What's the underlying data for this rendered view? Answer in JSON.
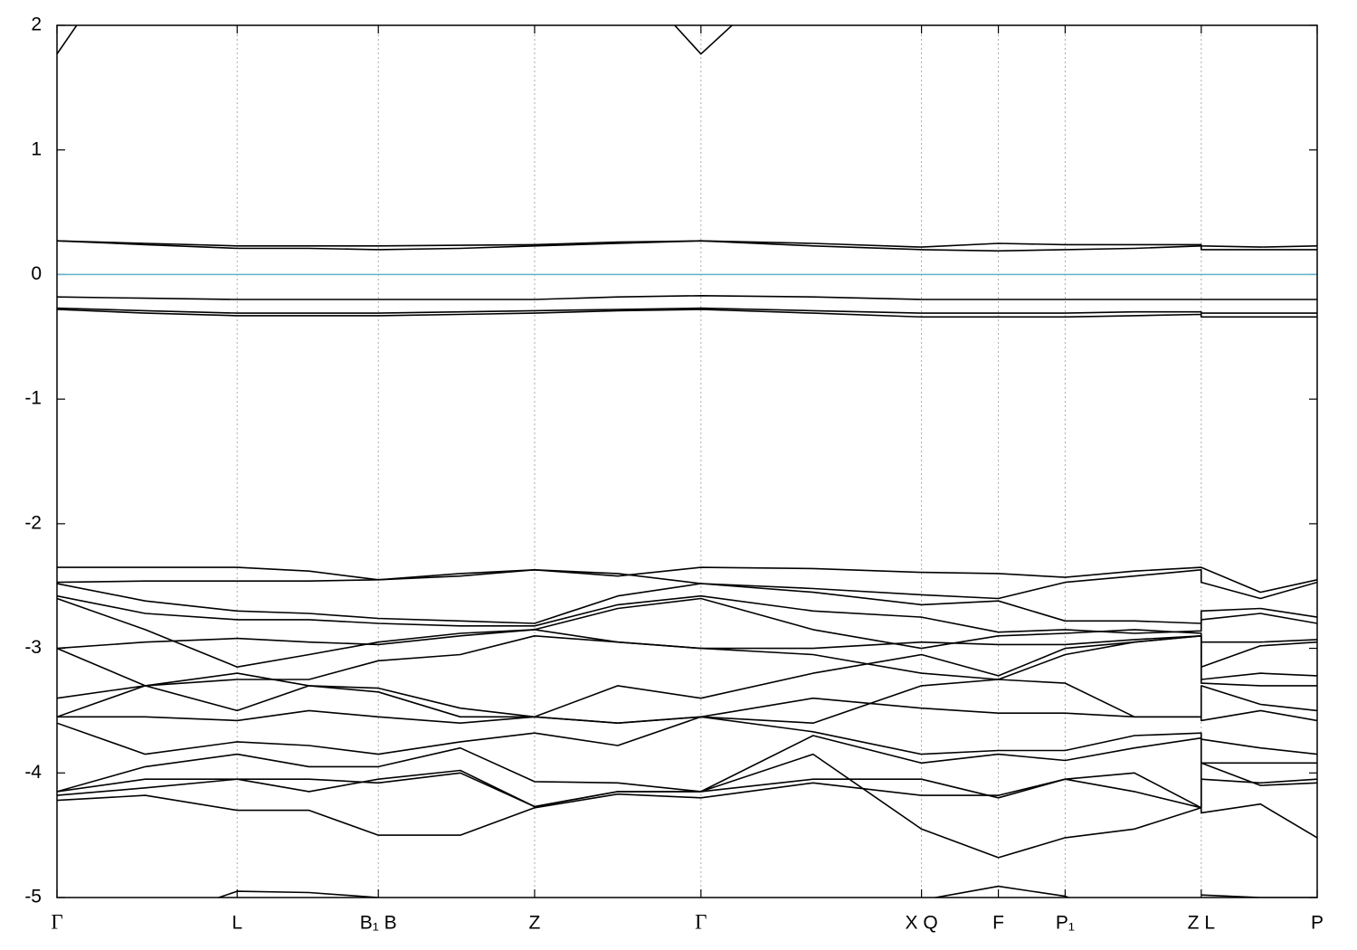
{
  "chart_data": {
    "type": "line",
    "x": [
      0,
      0.07,
      0.143,
      0.2,
      0.255,
      0.32,
      0.379,
      0.445,
      0.511,
      0.6,
      0.686,
      0.747,
      0.8,
      0.855,
      0.908,
      0.908,
      0.955,
      1.0
    ],
    "xlim": [
      0,
      1
    ],
    "xticks": [
      {
        "value": 0,
        "label": "Γ"
      },
      {
        "value": 0.143,
        "label": "L"
      },
      {
        "value": 0.255,
        "label": "B₁ B"
      },
      {
        "value": 0.379,
        "label": "Z"
      },
      {
        "value": 0.511,
        "label": "Γ"
      },
      {
        "value": 0.686,
        "label": "X Q"
      },
      {
        "value": 0.747,
        "label": "F"
      },
      {
        "value": 0.8,
        "label": "P₁"
      },
      {
        "value": 0.908,
        "label": "Z L"
      },
      {
        "value": 1.0,
        "label": "P"
      }
    ],
    "ylim": [
      -5,
      2
    ],
    "yticks": [
      -5,
      -4,
      -3,
      -2,
      -1,
      0,
      1,
      2
    ],
    "grid": "x",
    "fermi_level": 0,
    "fermi_color": "#5fb3c9",
    "series": [
      {
        "color": "#000000",
        "values": [
          1.77,
          2.8,
          null,
          null,
          null,
          null,
          null,
          2.5,
          1.77,
          2.6,
          null,
          null,
          null,
          null,
          null,
          null,
          null,
          null
        ]
      },
      {
        "color": "#000000",
        "values": [
          0.27,
          0.25,
          0.23,
          0.23,
          0.23,
          0.235,
          0.24,
          0.26,
          0.27,
          0.25,
          0.22,
          0.25,
          0.24,
          0.24,
          0.24,
          0.23,
          0.22,
          0.23
        ]
      },
      {
        "color": "#000000",
        "values": [
          0.27,
          0.24,
          0.21,
          0.21,
          0.2,
          0.21,
          0.23,
          0.25,
          0.27,
          0.23,
          0.2,
          0.19,
          0.2,
          0.21,
          0.23,
          0.2,
          0.2,
          0.2
        ]
      },
      {
        "color": "#000000",
        "values": [
          -0.18,
          -0.19,
          -0.2,
          -0.2,
          -0.2,
          -0.2,
          -0.2,
          -0.18,
          -0.17,
          -0.18,
          -0.2,
          -0.2,
          -0.2,
          -0.2,
          -0.2,
          -0.2,
          -0.2,
          -0.2
        ]
      },
      {
        "color": "#000000",
        "values": [
          -0.27,
          -0.29,
          -0.31,
          -0.31,
          -0.31,
          -0.3,
          -0.29,
          -0.28,
          -0.27,
          -0.29,
          -0.31,
          -0.31,
          -0.31,
          -0.3,
          -0.3,
          -0.31,
          -0.31,
          -0.31
        ]
      },
      {
        "color": "#000000",
        "values": [
          -0.28,
          -0.31,
          -0.33,
          -0.33,
          -0.33,
          -0.32,
          -0.31,
          -0.29,
          -0.28,
          -0.31,
          -0.34,
          -0.34,
          -0.34,
          -0.33,
          -0.32,
          -0.34,
          -0.34,
          -0.34
        ]
      },
      {
        "color": "#000000",
        "values": [
          -2.35,
          -2.35,
          -2.35,
          -2.38,
          -2.45,
          -2.42,
          -2.37,
          -2.42,
          -2.35,
          -2.36,
          -2.39,
          -2.4,
          -2.43,
          -2.38,
          -2.35,
          -2.35,
          -2.55,
          -2.45
        ]
      },
      {
        "color": "#000000",
        "values": [
          -2.47,
          -2.46,
          -2.46,
          -2.46,
          -2.45,
          -2.4,
          -2.37,
          -2.4,
          -2.48,
          -2.52,
          -2.57,
          -2.6,
          -2.47,
          -2.42,
          -2.37,
          -2.47,
          -2.6,
          -2.47
        ]
      },
      {
        "color": "#000000",
        "values": [
          -2.48,
          -2.62,
          -2.7,
          -2.72,
          -2.76,
          -2.78,
          -2.8,
          -2.58,
          -2.48,
          -2.55,
          -2.65,
          -2.62,
          -2.78,
          -2.78,
          -2.8,
          -2.7,
          -2.68,
          -2.75
        ]
      },
      {
        "color": "#000000",
        "values": [
          -2.58,
          -2.72,
          -2.77,
          -2.77,
          -2.8,
          -2.82,
          -2.82,
          -2.65,
          -2.58,
          -2.7,
          -2.75,
          -2.87,
          -2.85,
          -2.88,
          -2.86,
          -2.77,
          -2.72,
          -2.8
        ]
      },
      {
        "color": "#000000",
        "values": [
          -2.6,
          -2.85,
          -3.15,
          -3.05,
          -2.95,
          -2.88,
          -2.85,
          -2.68,
          -2.6,
          -2.85,
          -3.0,
          -2.9,
          -2.88,
          -2.85,
          -2.88,
          -2.95,
          -2.95,
          -2.93
        ]
      },
      {
        "color": "#000000",
        "values": [
          -3.0,
          -2.95,
          -2.92,
          -2.95,
          -2.97,
          -2.9,
          -2.85,
          -2.95,
          -3.0,
          -3.0,
          -2.95,
          -2.97,
          -2.97,
          -2.93,
          -2.9,
          -3.15,
          -2.98,
          -2.95
        ]
      },
      {
        "color": "#000000",
        "values": [
          -3.0,
          -3.3,
          -3.5,
          -3.3,
          -3.35,
          -3.55,
          -3.55,
          -3.3,
          -3.4,
          -3.2,
          -3.05,
          -3.22,
          -3.0,
          -2.95,
          -2.9,
          -3.25,
          -3.2,
          -3.22
        ]
      },
      {
        "color": "#000000",
        "values": [
          -3.4,
          -3.3,
          -3.25,
          -3.25,
          -3.1,
          -3.05,
          -2.9,
          -2.95,
          -3.0,
          -3.05,
          -3.2,
          -3.25,
          -3.05,
          -2.95,
          -2.9,
          -3.28,
          -3.3,
          -3.3
        ]
      },
      {
        "color": "#000000",
        "values": [
          -3.55,
          -3.3,
          -3.2,
          -3.3,
          -3.32,
          -3.48,
          -3.55,
          -3.6,
          -3.55,
          -3.6,
          -3.3,
          -3.25,
          -3.28,
          -3.55,
          -3.55,
          -3.3,
          -3.45,
          -3.5
        ]
      },
      {
        "color": "#000000",
        "values": [
          -3.55,
          -3.55,
          -3.58,
          -3.5,
          -3.55,
          -3.6,
          -3.55,
          -3.6,
          -3.55,
          -3.4,
          -3.48,
          -3.52,
          -3.52,
          -3.55,
          -3.55,
          -3.58,
          -3.5,
          -3.58
        ]
      },
      {
        "color": "#000000",
        "values": [
          -3.6,
          -3.85,
          -3.75,
          -3.78,
          -3.85,
          -3.75,
          -3.68,
          -3.78,
          -3.55,
          -3.67,
          -3.85,
          -3.82,
          -3.82,
          -3.7,
          -3.68,
          -3.73,
          -3.8,
          -3.85
        ]
      },
      {
        "color": "#000000",
        "values": [
          -4.15,
          -3.95,
          -3.85,
          -3.95,
          -3.95,
          -3.8,
          -4.07,
          -4.08,
          -4.15,
          -3.7,
          -3.92,
          -3.85,
          -3.9,
          -3.8,
          -3.72,
          -3.92,
          -3.92,
          -3.92
        ]
      },
      {
        "color": "#000000",
        "values": [
          -4.15,
          -4.05,
          -4.05,
          -4.15,
          -4.05,
          -3.98,
          -4.27,
          -4.15,
          -4.15,
          -4.05,
          -4.05,
          -4.2,
          -4.05,
          -4.0,
          -4.28,
          -3.92,
          -4.1,
          -4.08
        ]
      },
      {
        "color": "#000000",
        "values": [
          -4.22,
          -4.18,
          -4.3,
          -4.3,
          -4.5,
          -4.5,
          -4.28,
          -4.17,
          -4.2,
          -4.08,
          -4.18,
          -4.18,
          -4.05,
          -4.15,
          -4.28,
          -4.05,
          -4.08,
          -4.05
        ]
      },
      {
        "color": "#000000",
        "values": [
          -4.18,
          -4.12,
          -4.05,
          -4.05,
          -4.08,
          -4.0,
          -4.27,
          -4.15,
          -4.15,
          -3.85,
          -4.45,
          -4.68,
          -4.52,
          -4.45,
          -4.28,
          -4.32,
          -4.25,
          -4.52
        ]
      },
      {
        "color": "#000000",
        "values": [
          null,
          -5.2,
          -4.95,
          -4.96,
          -5.0,
          -5.3,
          null,
          null,
          null,
          -5.3,
          -5.02,
          -4.91,
          -4.99,
          -5.2,
          null,
          -4.98,
          -5.0,
          -5.0
        ]
      }
    ]
  }
}
